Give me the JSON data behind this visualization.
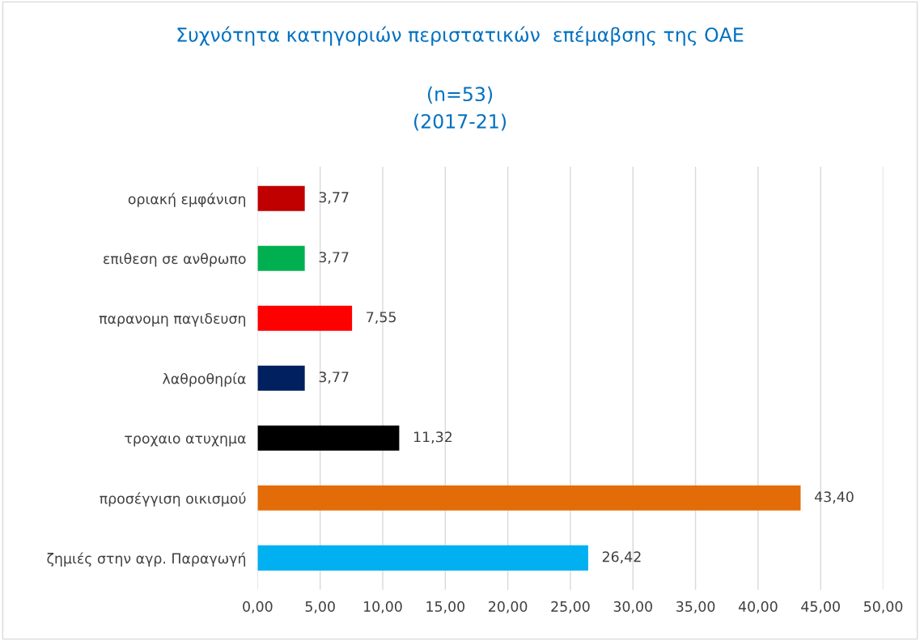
{
  "chart_data": {
    "type": "bar",
    "orientation": "horizontal",
    "title": "Συχνότητα κατηγοριών περιστατικών  επέμαβσης της ΟΑΕ",
    "subtitle": "(n=53)\n(2017-21)",
    "categories": [
      "οριακή εμφάνιση",
      "επιθεση σε ανθρωπο",
      "παρανομη παγιδευση",
      "λαθροθηρία",
      "τροχαιο ατυχημα",
      "προσέγγιση οικισμού",
      "ζημιές στην αγρ. Παραγωγή"
    ],
    "values": [
      3.77,
      3.77,
      7.55,
      3.77,
      11.32,
      43.4,
      26.42
    ],
    "colors": [
      "#c00000",
      "#00b050",
      "#ff0000",
      "#002060",
      "#000000",
      "#e36c09",
      "#00b0f0"
    ],
    "value_labels": [
      "3,77",
      "3,77",
      "7,55",
      "3,77",
      "11,32",
      "43,40",
      "26,42"
    ],
    "xlim": [
      0,
      50
    ],
    "xticks": [
      {
        "value": 0,
        "label": "0,00"
      },
      {
        "value": 5,
        "label": "5,00"
      },
      {
        "value": 10,
        "label": "10,00"
      },
      {
        "value": 15,
        "label": "15,00"
      },
      {
        "value": 20,
        "label": "20,00"
      },
      {
        "value": 25,
        "label": "25,00"
      },
      {
        "value": 30,
        "label": "30,00"
      },
      {
        "value": 35,
        "label": "35,00"
      },
      {
        "value": 40,
        "label": "40,00"
      },
      {
        "value": 45,
        "label": "45,00"
      },
      {
        "value": 50,
        "label": "50,00"
      }
    ],
    "grid": "x"
  }
}
